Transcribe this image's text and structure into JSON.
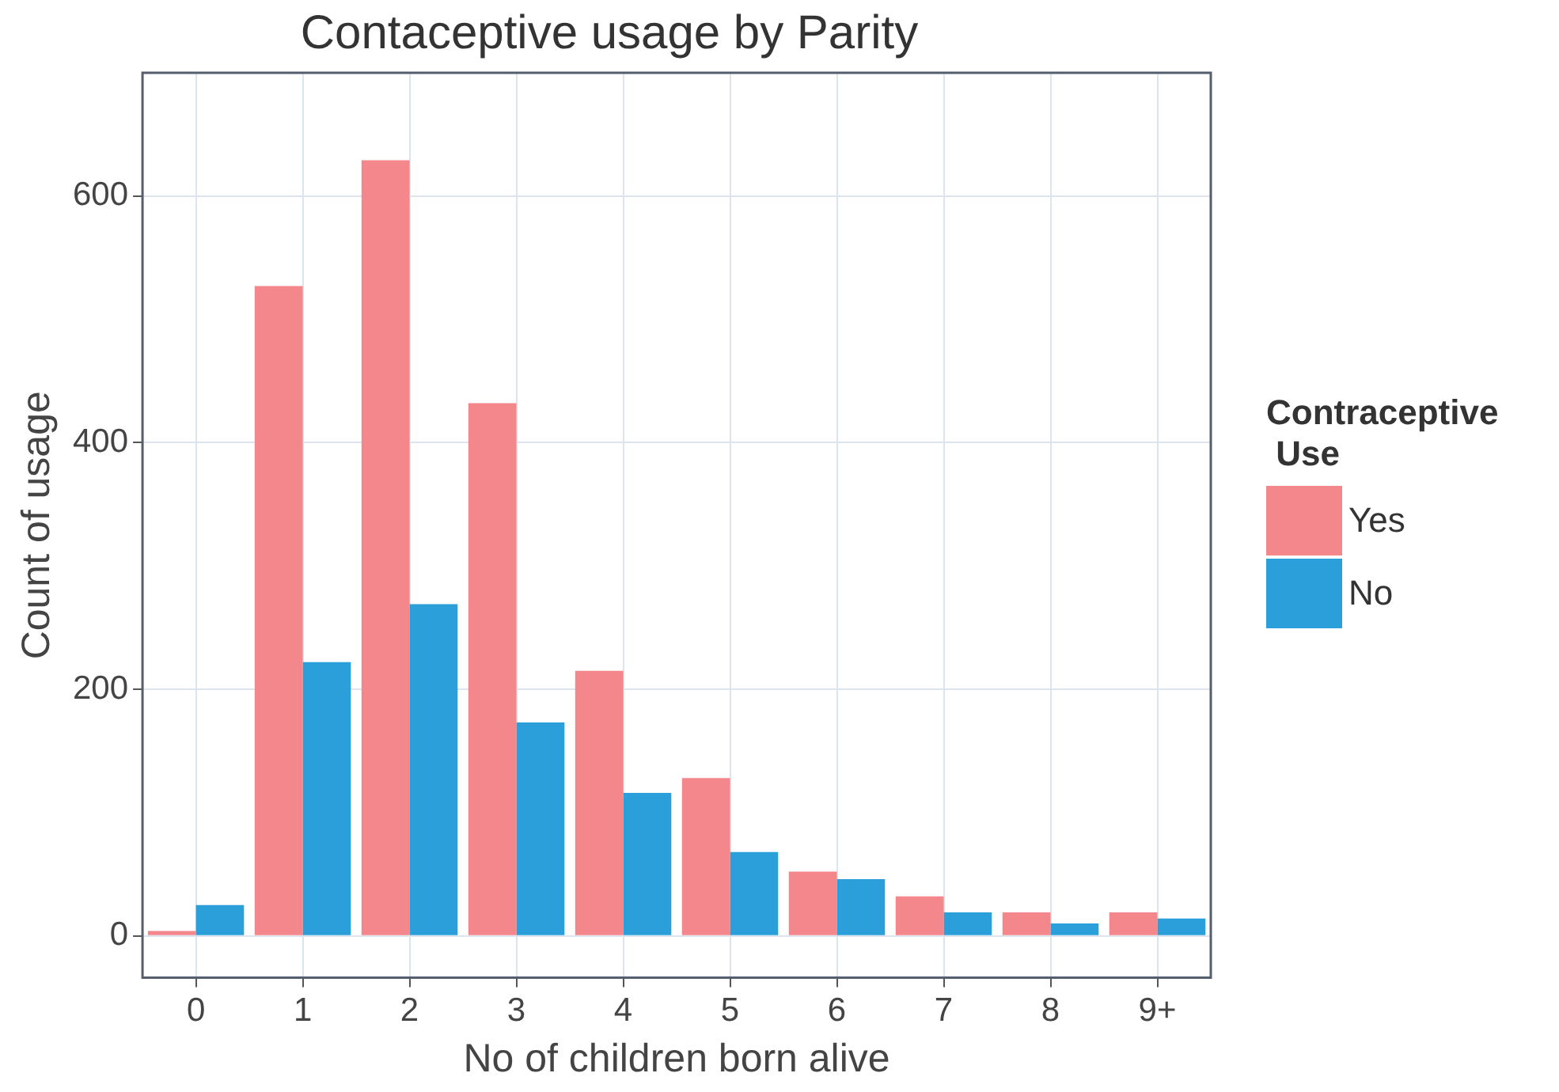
{
  "chart_data": {
    "type": "bar",
    "title": "Contaceptive usage by Parity",
    "xlabel": "No of children born alive",
    "ylabel": "Count of usage",
    "legend_title": "Contraceptive\n Use",
    "categories": [
      "0",
      "1",
      "2",
      "3",
      "4",
      "5",
      "6",
      "7",
      "8",
      "9+"
    ],
    "series": [
      {
        "name": "Yes",
        "color": "#f4878b",
        "values": [
          4,
          527,
          629,
          432,
          215,
          128,
          52,
          32,
          19,
          19
        ]
      },
      {
        "name": "No",
        "color": "#2b9fd9",
        "values": [
          25,
          222,
          269,
          173,
          116,
          68,
          46,
          19,
          10,
          14
        ]
      }
    ],
    "ylim": [
      -34,
      700
    ],
    "yticks": [
      0,
      200,
      400,
      600
    ],
    "grid": true,
    "legend": "right"
  }
}
